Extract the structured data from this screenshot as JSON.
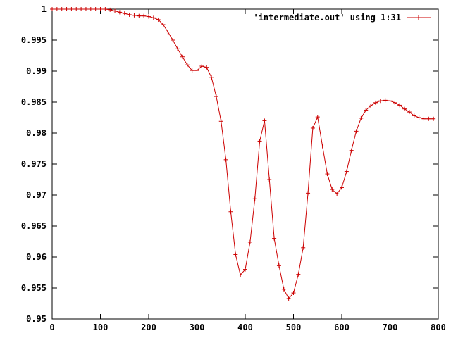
{
  "chart_data": {
    "type": "line",
    "title": "",
    "xlabel": "",
    "ylabel": "",
    "xlim": [
      0,
      800
    ],
    "ylim": [
      0.95,
      1.0
    ],
    "grid": false,
    "legend_position": "top-right",
    "x_ticks": [
      "0",
      "100",
      "200",
      "300",
      "400",
      "500",
      "600",
      "700",
      "800"
    ],
    "y_ticks": [
      "0.95",
      "0.955",
      "0.96",
      "0.965",
      "0.97",
      "0.975",
      "0.98",
      "0.985",
      "0.99",
      "0.995",
      "1"
    ],
    "series": [
      {
        "name": "'intermediate.out' using 1:31",
        "color": "#cc0000",
        "marker": "plus",
        "x": [
          0,
          10,
          20,
          30,
          40,
          50,
          60,
          70,
          80,
          90,
          100,
          110,
          120,
          130,
          140,
          150,
          160,
          170,
          180,
          190,
          200,
          210,
          220,
          230,
          240,
          250,
          260,
          270,
          280,
          290,
          300,
          310,
          320,
          330,
          340,
          350,
          360,
          370,
          380,
          390,
          400,
          410,
          420,
          430,
          440,
          450,
          460,
          470,
          480,
          490,
          500,
          510,
          520,
          530,
          540,
          550,
          560,
          570,
          580,
          590,
          600,
          610,
          620,
          630,
          640,
          650,
          660,
          670,
          680,
          690,
          700,
          710,
          720,
          730,
          740,
          750,
          760,
          770,
          780,
          790
        ],
        "y": [
          1.0,
          1.0,
          1.0,
          1.0,
          1.0,
          1.0,
          1.0,
          1.0,
          1.0,
          1.0,
          1.0,
          1.0,
          0.9999,
          0.9997,
          0.9995,
          0.9993,
          0.9991,
          0.999,
          0.9989,
          0.9989,
          0.9988,
          0.9986,
          0.9983,
          0.9975,
          0.9963,
          0.995,
          0.9936,
          0.9923,
          0.991,
          0.9901,
          0.9901,
          0.9908,
          0.9906,
          0.989,
          0.9859,
          0.9819,
          0.9757,
          0.9673,
          0.9604,
          0.9571,
          0.958,
          0.9624,
          0.9694,
          0.9787,
          0.982,
          0.9725,
          0.963,
          0.9586,
          0.9548,
          0.9533,
          0.9542,
          0.9572,
          0.9615,
          0.9703,
          0.9808,
          0.9826,
          0.9779,
          0.9734,
          0.9709,
          0.9702,
          0.9712,
          0.9738,
          0.9772,
          0.9803,
          0.9824,
          0.9837,
          0.9844,
          0.9849,
          0.9852,
          0.9853,
          0.9852,
          0.9849,
          0.9845,
          0.9839,
          0.9834,
          0.9828,
          0.9825,
          0.9823,
          0.9823,
          0.9823
        ]
      }
    ]
  }
}
